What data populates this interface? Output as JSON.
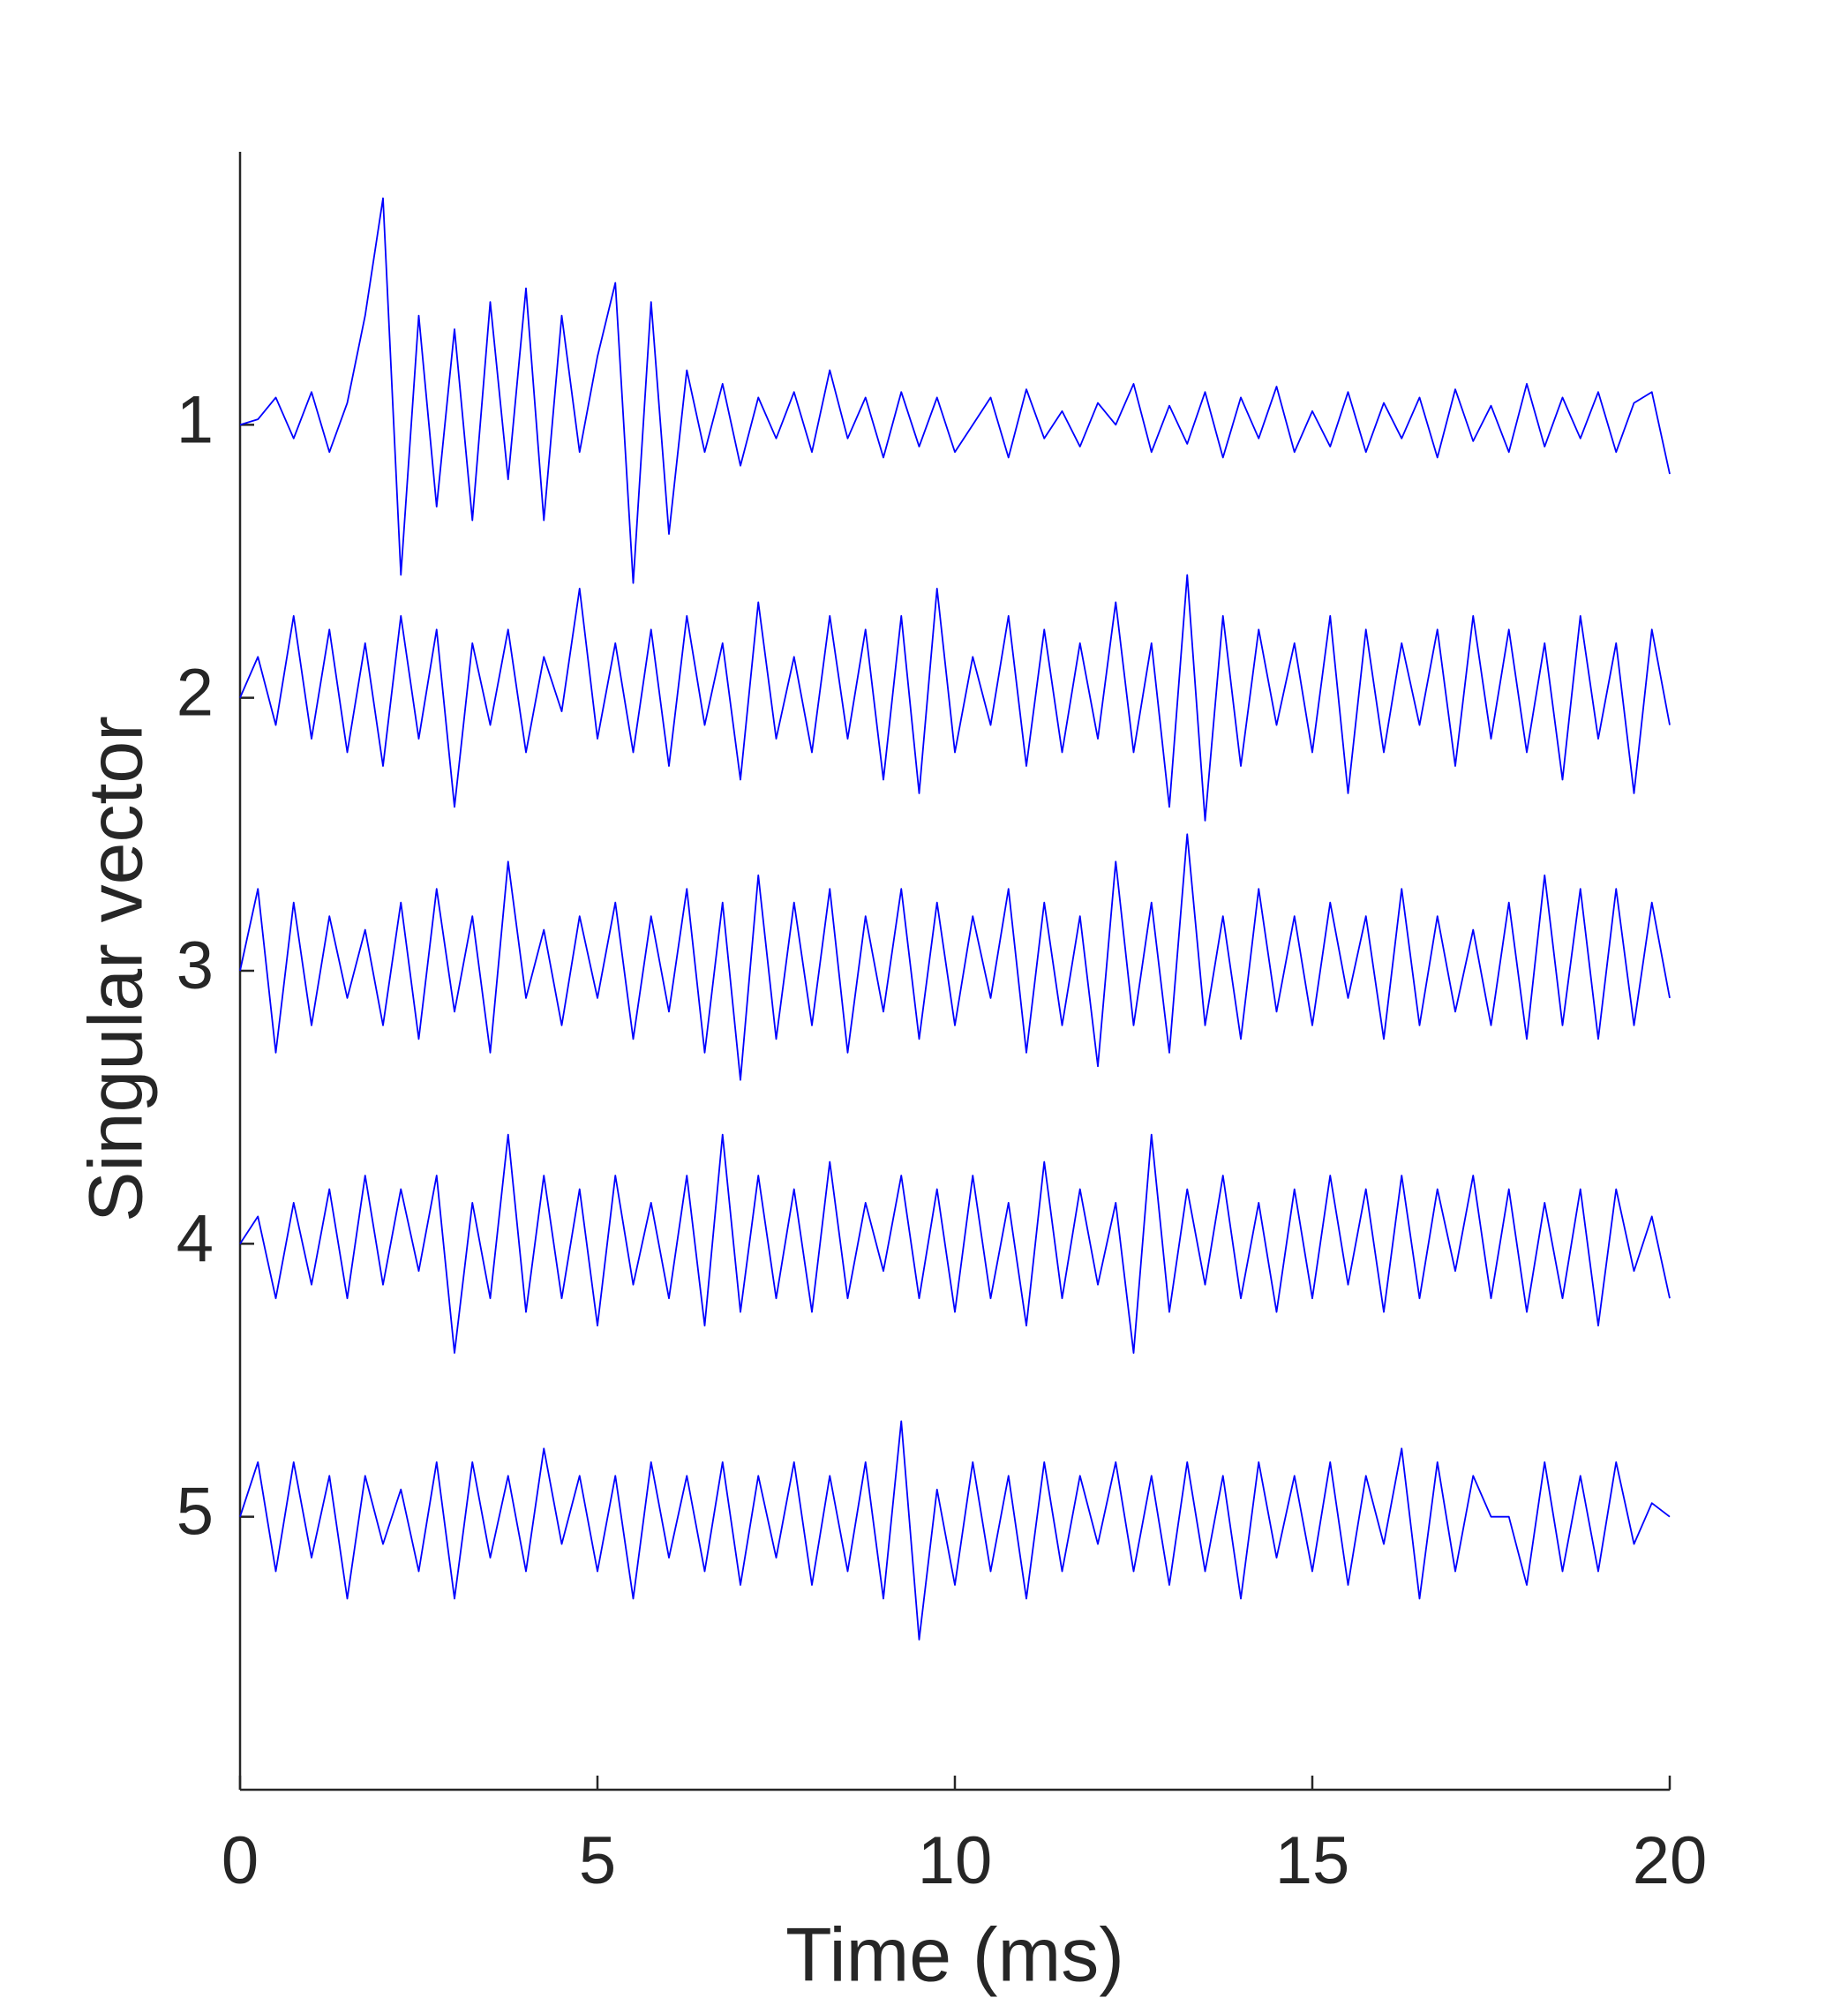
{
  "chart_data": {
    "type": "line",
    "xlabel": "Time (ms)",
    "ylabel": "Singular vector",
    "xlim": [
      0,
      20
    ],
    "xticks": [
      0,
      5,
      10,
      15,
      20
    ],
    "ylim": [
      0,
      6
    ],
    "yticks": [
      1,
      2,
      3,
      4,
      5
    ],
    "y_reversed": true,
    "grid": false,
    "x": [
      0,
      0.25,
      0.5,
      0.75,
      1,
      1.25,
      1.5,
      1.75,
      2,
      2.25,
      2.5,
      2.75,
      3,
      3.25,
      3.5,
      3.75,
      4,
      4.25,
      4.5,
      4.75,
      5,
      5.25,
      5.5,
      5.75,
      6,
      6.25,
      6.5,
      6.75,
      7,
      7.25,
      7.5,
      7.75,
      8,
      8.25,
      8.5,
      8.75,
      9,
      9.25,
      9.5,
      9.75,
      10,
      10.25,
      10.5,
      10.75,
      11,
      11.25,
      11.5,
      11.75,
      12,
      12.25,
      12.5,
      12.75,
      13,
      13.25,
      13.5,
      13.75,
      14,
      14.25,
      14.5,
      14.75,
      15,
      15.25,
      15.5,
      15.75,
      16,
      16.25,
      16.5,
      16.75,
      17,
      17.25,
      17.5,
      17.75,
      18,
      18.25,
      18.5,
      18.75,
      19,
      19.25,
      19.5,
      19.75,
      20
    ],
    "series": [
      {
        "color": "#0000ff",
        "values": [
          1.0,
          0.98,
          0.9,
          1.05,
          0.88,
          1.1,
          0.92,
          0.6,
          0.17,
          1.55,
          0.6,
          1.3,
          0.65,
          1.35,
          0.55,
          1.2,
          0.5,
          1.35,
          0.6,
          1.1,
          0.75,
          0.48,
          1.58,
          0.55,
          1.4,
          0.8,
          1.1,
          0.85,
          1.15,
          0.9,
          1.05,
          0.88,
          1.1,
          0.8,
          1.05,
          0.9,
          1.12,
          0.88,
          1.08,
          0.9,
          1.1,
          1.0,
          0.9,
          1.12,
          0.87,
          1.05,
          0.95,
          1.08,
          0.92,
          1.0,
          0.85,
          1.1,
          0.93,
          1.07,
          0.88,
          1.12,
          0.9,
          1.05,
          0.86,
          1.1,
          0.95,
          1.08,
          0.88,
          1.1,
          0.92,
          1.05,
          0.9,
          1.12,
          0.87,
          1.06,
          0.93,
          1.1,
          0.85,
          1.08,
          0.9,
          1.05,
          0.88,
          1.1,
          0.92,
          0.88,
          1.18
        ]
      },
      {
        "color": "#0000ff",
        "values": [
          2.0,
          1.85,
          2.1,
          1.7,
          2.15,
          1.75,
          2.2,
          1.8,
          2.25,
          1.7,
          2.15,
          1.75,
          2.4,
          1.8,
          2.1,
          1.75,
          2.2,
          1.85,
          2.05,
          1.6,
          2.15,
          1.8,
          2.2,
          1.75,
          2.25,
          1.7,
          2.1,
          1.8,
          2.3,
          1.65,
          2.15,
          1.85,
          2.2,
          1.7,
          2.15,
          1.75,
          2.3,
          1.7,
          2.35,
          1.6,
          2.2,
          1.85,
          2.1,
          1.7,
          2.25,
          1.75,
          2.2,
          1.8,
          2.15,
          1.65,
          2.2,
          1.8,
          2.4,
          1.55,
          2.45,
          1.7,
          2.25,
          1.75,
          2.1,
          1.8,
          2.2,
          1.7,
          2.35,
          1.75,
          2.2,
          1.8,
          2.1,
          1.75,
          2.25,
          1.7,
          2.15,
          1.75,
          2.2,
          1.8,
          2.3,
          1.7,
          2.15,
          1.8,
          2.35,
          1.75,
          2.1
        ]
      },
      {
        "color": "#0000ff",
        "values": [
          3.0,
          2.7,
          3.3,
          2.75,
          3.2,
          2.8,
          3.1,
          2.85,
          3.2,
          2.75,
          3.25,
          2.7,
          3.15,
          2.8,
          3.3,
          2.6,
          3.1,
          2.85,
          3.2,
          2.8,
          3.1,
          2.75,
          3.25,
          2.8,
          3.15,
          2.7,
          3.3,
          2.75,
          3.4,
          2.65,
          3.25,
          2.75,
          3.2,
          2.7,
          3.3,
          2.8,
          3.15,
          2.7,
          3.25,
          2.75,
          3.2,
          2.8,
          3.1,
          2.7,
          3.3,
          2.75,
          3.2,
          2.8,
          3.35,
          2.6,
          3.2,
          2.75,
          3.3,
          2.5,
          3.2,
          2.8,
          3.25,
          2.7,
          3.15,
          2.8,
          3.2,
          2.75,
          3.1,
          2.8,
          3.25,
          2.7,
          3.2,
          2.8,
          3.15,
          2.85,
          3.2,
          2.75,
          3.25,
          2.65,
          3.2,
          2.7,
          3.25,
          2.7,
          3.2,
          2.75,
          3.1
        ]
      },
      {
        "color": "#0000ff",
        "values": [
          4.0,
          3.9,
          4.2,
          3.85,
          4.15,
          3.8,
          4.2,
          3.75,
          4.15,
          3.8,
          4.1,
          3.75,
          4.4,
          3.85,
          4.2,
          3.6,
          4.25,
          3.75,
          4.2,
          3.8,
          4.3,
          3.75,
          4.15,
          3.85,
          4.2,
          3.75,
          4.3,
          3.6,
          4.25,
          3.75,
          4.2,
          3.8,
          4.25,
          3.7,
          4.2,
          3.85,
          4.1,
          3.75,
          4.2,
          3.8,
          4.25,
          3.75,
          4.2,
          3.85,
          4.3,
          3.7,
          4.2,
          3.8,
          4.15,
          3.85,
          4.4,
          3.6,
          4.25,
          3.8,
          4.15,
          3.75,
          4.2,
          3.85,
          4.25,
          3.8,
          4.2,
          3.75,
          4.15,
          3.8,
          4.25,
          3.75,
          4.2,
          3.8,
          4.1,
          3.75,
          4.2,
          3.8,
          4.25,
          3.85,
          4.2,
          3.8,
          4.3,
          3.8,
          4.1,
          3.9,
          4.2
        ]
      },
      {
        "color": "#0000ff",
        "values": [
          5.0,
          4.8,
          5.2,
          4.8,
          5.15,
          4.85,
          5.3,
          4.85,
          5.1,
          4.9,
          5.2,
          4.8,
          5.3,
          4.8,
          5.15,
          4.85,
          5.2,
          4.75,
          5.1,
          4.85,
          5.2,
          4.85,
          5.3,
          4.8,
          5.15,
          4.85,
          5.2,
          4.8,
          5.25,
          4.85,
          5.15,
          4.8,
          5.25,
          4.85,
          5.2,
          4.8,
          5.3,
          4.65,
          5.45,
          4.9,
          5.25,
          4.8,
          5.2,
          4.85,
          5.3,
          4.8,
          5.2,
          4.85,
          5.1,
          4.8,
          5.2,
          4.85,
          5.25,
          4.8,
          5.2,
          4.85,
          5.3,
          4.8,
          5.15,
          4.85,
          5.2,
          4.8,
          5.25,
          4.85,
          5.1,
          4.75,
          5.3,
          4.8,
          5.2,
          4.85,
          5.0,
          5.0,
          5.25,
          4.8,
          5.2,
          4.85,
          5.2,
          4.8,
          5.1,
          4.95,
          5.0
        ]
      }
    ]
  }
}
